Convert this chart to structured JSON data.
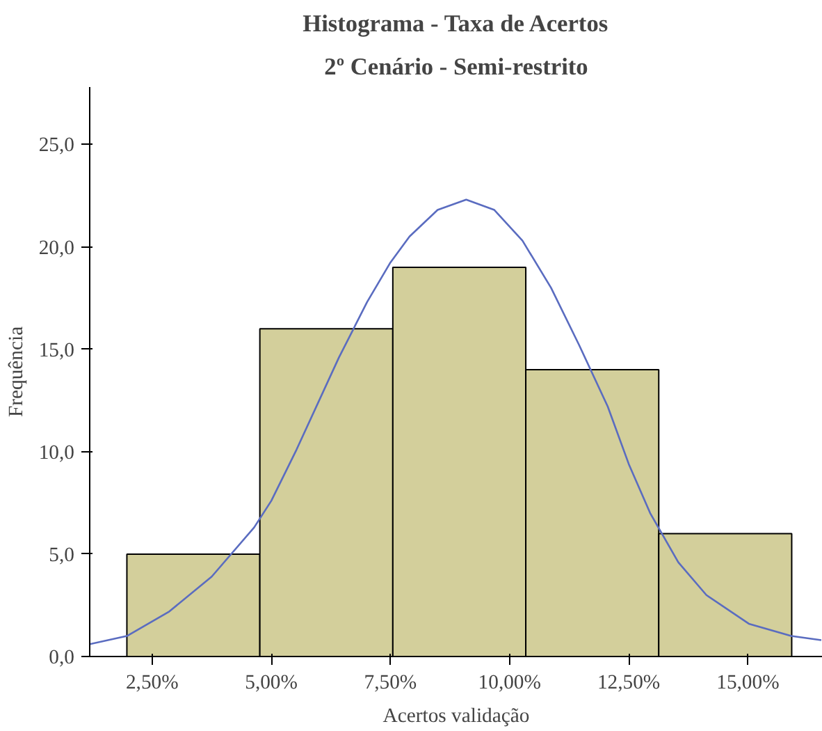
{
  "chart_data": {
    "type": "histogram",
    "title": "Histograma - Taxa de Acertos",
    "subtitle": "2º Cenário - Semi-restrito",
    "xlabel": "Acertos validação",
    "ylabel": "Frequência",
    "bins": [
      1.97,
      4.76,
      7.55,
      10.34,
      13.13,
      15.92
    ],
    "values": [
      5,
      16,
      19,
      14,
      6
    ],
    "color": "#d3cf9b",
    "series": [
      {
        "type": "line",
        "color": "#5a6cc0",
        "x": [
          1.19,
          1.97,
          2.86,
          3.75,
          4.64,
          5.0,
          5.53,
          6.42,
          7.01,
          7.49,
          7.9,
          8.49,
          9.09,
          9.68,
          10.27,
          10.87,
          11.46,
          12.06,
          12.5,
          12.95,
          13.54,
          14.13,
          15.02,
          15.91,
          16.54
        ],
        "values": [
          0.6,
          1.0,
          2.2,
          3.9,
          6.3,
          7.6,
          10.1,
          14.6,
          17.3,
          19.2,
          20.5,
          21.8,
          22.3,
          21.8,
          20.3,
          18.0,
          15.2,
          12.2,
          9.4,
          7.0,
          4.6,
          3.0,
          1.6,
          1.0,
          0.8
        ]
      }
    ],
    "xlim": [
      1.19,
      16.57
    ],
    "ylim": [
      0,
      27.8
    ],
    "xticks": [
      {
        "value": 2.5,
        "label": "2,50%"
      },
      {
        "value": 5,
        "label": "5,00%"
      },
      {
        "value": 7.5,
        "label": "7,50%"
      },
      {
        "value": 10,
        "label": "10,00%"
      },
      {
        "value": 12.5,
        "label": "12,50%"
      },
      {
        "value": 15,
        "label": "15,00%"
      }
    ],
    "yticks": [
      {
        "value": 0,
        "label": "0,0"
      },
      {
        "value": 5,
        "label": "5,0"
      },
      {
        "value": 10,
        "label": "10,0"
      },
      {
        "value": 15,
        "label": "15,0"
      },
      {
        "value": 20,
        "label": "20,0"
      },
      {
        "value": 25,
        "label": "25,0"
      }
    ],
    "grid": false
  }
}
